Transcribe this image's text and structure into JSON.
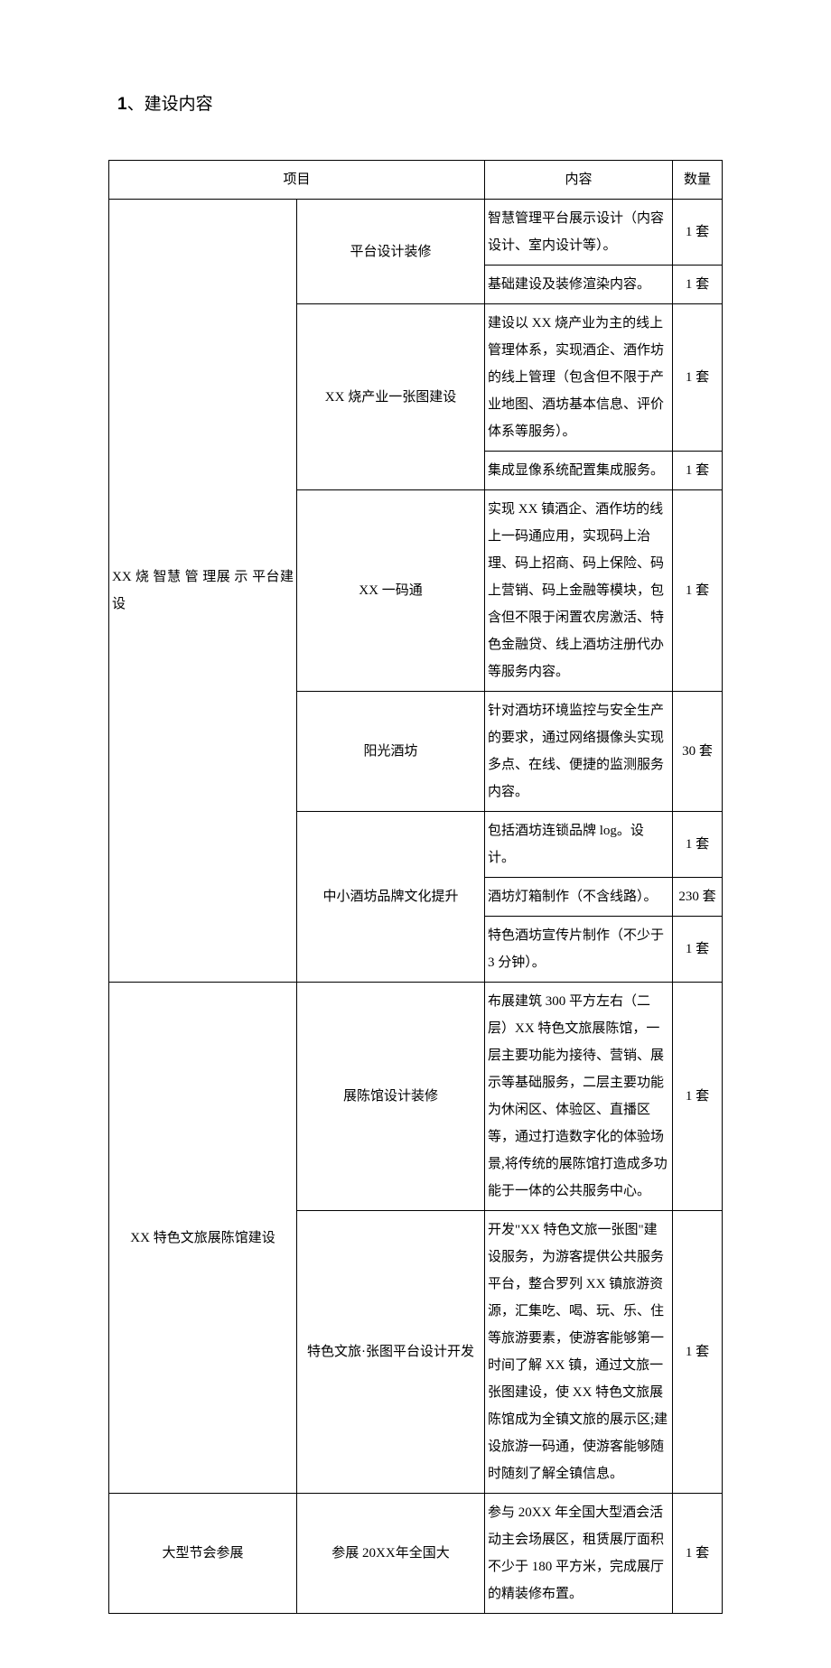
{
  "heading": {
    "number": "1",
    "separator": "、",
    "title": "建设内容"
  },
  "table": {
    "headers": {
      "project": "项目",
      "content": "内容",
      "quantity": "数量"
    },
    "rows": [
      {
        "group": "XX 烧 智慧 管 理展 示 平台建设",
        "sub": "平台设计装修",
        "content": "智慧管理平台展示设计（内容设计、室内设计等）。",
        "qty": "1 套"
      },
      {
        "content": "基础建设及装修渲染内容。",
        "qty": "1 套"
      },
      {
        "sub": "XX 烧产业一张图建设",
        "content": "建设以 XX 烧产业为主的线上管理体系，实现酒企、酒作坊的线上管理（包含但不限于产业地图、酒坊基本信息、评价体系等服务）。",
        "qty": "1 套"
      },
      {
        "content": "集成显像系统配置集成服务。",
        "qty": "1 套"
      },
      {
        "sub": "XX 一码通",
        "content": "实现 XX 镇酒企、酒作坊的线上一码通应用，实现码上治理、码上招商、码上保险、码上营销、码上金融等模块，包含但不限于闲置农房激活、特色金融贷、线上酒坊注册代办等服务内容。",
        "qty": "1 套"
      },
      {
        "sub": "阳光酒坊",
        "content": "针对酒坊环境监控与安全生产的要求，通过网络摄像头实现多点、在线、便捷的监测服务内容。",
        "qty": "30 套"
      },
      {
        "sub": "中小酒坊品牌文化提升",
        "content": "包括酒坊连锁品牌 log。设计。",
        "qty": "1 套"
      },
      {
        "content": "酒坊灯箱制作（不含线路）。",
        "qty": "230 套"
      },
      {
        "content": "特色酒坊宣传片制作（不少于 3 分钟）。",
        "qty": "1 套"
      },
      {
        "group": "XX 特色文旅展陈馆建设",
        "sub": "展陈馆设计装修",
        "content": "布展建筑 300 平方左右（二层）XX 特色文旅展陈馆，一层主要功能为接待、营销、展示等基础服务，二层主要功能为休闲区、体验区、直播区等，通过打造数字化的体验场景,将传统的展陈馆打造成多功能于一体的公共服务中心。",
        "qty": "1 套"
      },
      {
        "sub": "特色文旅·张图平台设计开发",
        "content": "开发\"XX 特色文旅一张图\"建设服务，为游客提供公共服务平台，整合罗列 XX 镇旅游资源，汇集吃、喝、玩、乐、住等旅游要素，使游客能够第一时间了解 XX 镇，通过文旅一张图建设，使 XX 特色文旅展陈馆成为全镇文旅的展示区;建设旅游一码通，使游客能够随时随刻了解全镇信息。",
        "qty": "1 套"
      },
      {
        "group": "大型节会参展",
        "sub": "参展 20XX年全国大",
        "content": "参与 20XX 年全国大型酒会活动主会场展区，租赁展厅面积不少于 180 平方米，完成展厅的精装修布置。",
        "qty": "1 套"
      }
    ]
  }
}
